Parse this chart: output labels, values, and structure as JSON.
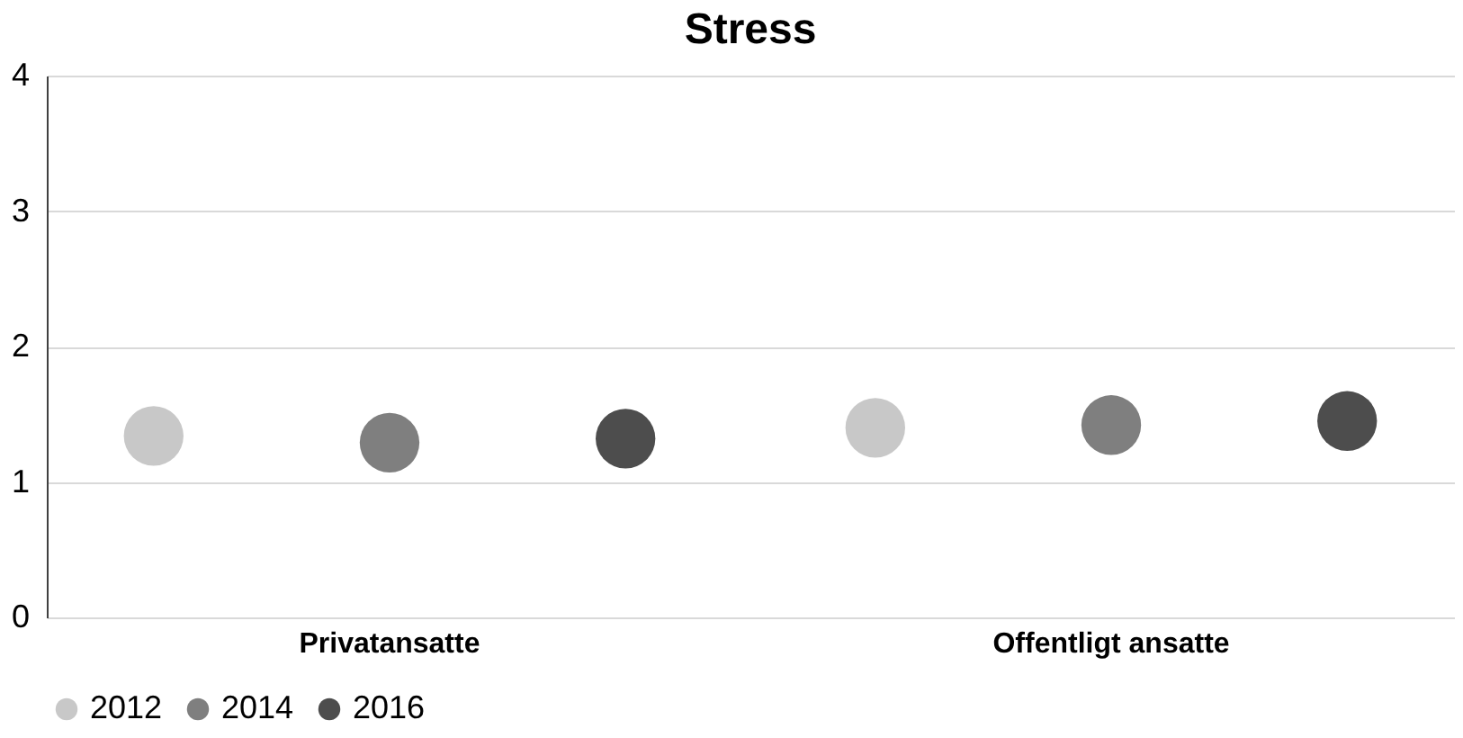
{
  "chart_data": {
    "type": "scatter",
    "title": "Stress",
    "categories": [
      "Privatansatte",
      "Offentligt ansatte"
    ],
    "series": [
      {
        "name": "2012",
        "color": "#c8c8c8",
        "values": [
          1.34,
          1.4
        ]
      },
      {
        "name": "2014",
        "color": "#7f7f7f",
        "values": [
          1.29,
          1.42
        ]
      },
      {
        "name": "2016",
        "color": "#4d4d4d",
        "values": [
          1.32,
          1.45
        ]
      }
    ],
    "ylim": [
      0,
      4
    ],
    "yticks": [
      0,
      1,
      2,
      3,
      4
    ],
    "grid": "y",
    "legend": "bottom"
  }
}
